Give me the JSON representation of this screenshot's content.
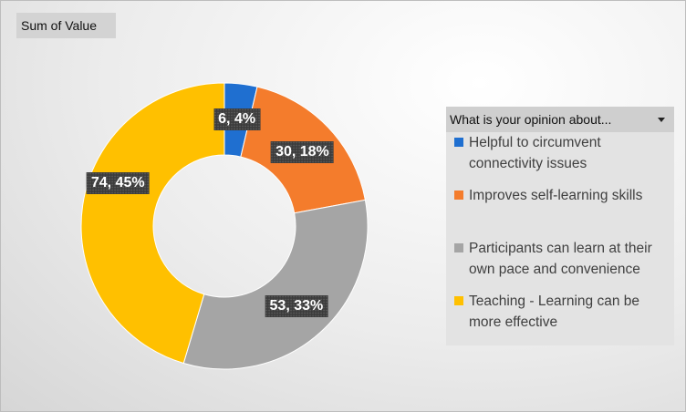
{
  "field_button": "Sum of Value",
  "legend": {
    "title": "What is your opinion about...",
    "items": [
      {
        "label": "Helpful to circumvent connectivity issues",
        "color": "#1f6fd0"
      },
      {
        "label": "Improves self-learning skills",
        "color": "#f47c2c"
      },
      {
        "label": "Participants can learn at their own pace and convenience",
        "color": "#a5a5a5"
      },
      {
        "label": "Teaching - Learning can be more effective",
        "color": "#ffc000"
      }
    ]
  },
  "chart_data": {
    "type": "pie",
    "variant": "doughnut",
    "categories": [
      "Helpful to circumvent connectivity issues",
      "Improves self-learning skills",
      "Participants can learn at their own pace and convenience",
      "Teaching - Learning can be more effective"
    ],
    "values": [
      6,
      30,
      53,
      74
    ],
    "data_labels": [
      "6, 4%",
      "30, 18%",
      "53, 33%",
      "74, 45%"
    ],
    "colors": [
      "#1f6fd0",
      "#f47c2c",
      "#a5a5a5",
      "#ffc000"
    ],
    "legend_position": "right"
  }
}
